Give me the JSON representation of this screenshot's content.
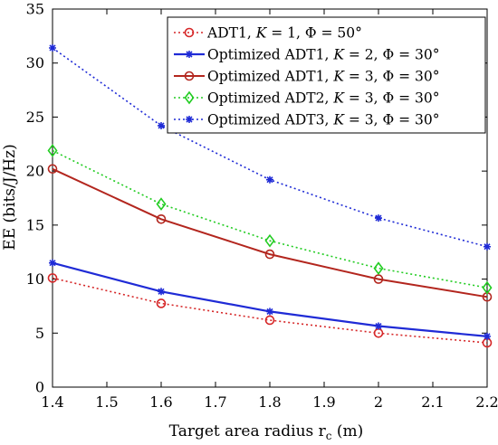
{
  "chart_data": {
    "type": "line",
    "xlabel": "Target area radius r",
    "xlabel_sub": "c",
    "xlabel_unit": " (m)",
    "ylabel": "EE (bits/J/Hz)",
    "xlim": [
      1.4,
      2.2
    ],
    "ylim": [
      0,
      35
    ],
    "x_ticks": [
      1.4,
      1.5,
      1.6,
      1.7,
      1.8,
      1.9,
      2.0,
      2.1,
      2.2
    ],
    "x_tick_labels": [
      "1.4",
      "1.5",
      "1.6",
      "1.7",
      "1.8",
      "1.9",
      "2",
      "2.1",
      "2.2"
    ],
    "y_ticks": [
      0,
      5,
      10,
      15,
      20,
      25,
      30,
      35
    ],
    "y_tick_labels": [
      "0",
      "5",
      "10",
      "15",
      "20",
      "25",
      "30",
      "35"
    ],
    "grid": false,
    "legend_position": "top-right",
    "x": [
      1.4,
      1.6,
      1.8,
      2.0,
      2.2
    ],
    "series": [
      {
        "name": "ADT1, K = 1, Φ = 50°",
        "legend": [
          {
            "t": "ADT1, "
          },
          {
            "t": "K",
            "i": true
          },
          {
            "t": " = 1, Φ = 50°"
          }
        ],
        "values": [
          10.1,
          7.75,
          6.2,
          5.0,
          4.1
        ],
        "color": "#d62728",
        "dash": "2,3",
        "marker": "circle",
        "width": 1.6
      },
      {
        "name": "Optimized ADT1, K = 2, Φ = 30°",
        "legend": [
          {
            "t": "Optimized ADT1, "
          },
          {
            "t": "K",
            "i": true
          },
          {
            "t": " = 2, Φ = 30°"
          }
        ],
        "values": [
          11.5,
          8.85,
          7.0,
          5.65,
          4.7
        ],
        "color": "#1f2bd6",
        "dash": "",
        "marker": "star",
        "width": 2.2
      },
      {
        "name": "Optimized ADT1, K = 3, Φ = 30°",
        "legend": [
          {
            "t": "Optimized ADT1, "
          },
          {
            "t": "K",
            "i": true
          },
          {
            "t": " = 3, Φ = 30°"
          }
        ],
        "values": [
          20.2,
          15.55,
          12.3,
          10.0,
          8.35
        ],
        "color": "#b3261e",
        "dash": "",
        "marker": "circle",
        "width": 2.0
      },
      {
        "name": "Optimized ADT2, K = 3, Φ = 30°",
        "legend": [
          {
            "t": "Optimized ADT2, "
          },
          {
            "t": "K",
            "i": true
          },
          {
            "t": " = 3, Φ = 30°"
          }
        ],
        "values": [
          21.9,
          16.95,
          13.55,
          11.0,
          9.2
        ],
        "color": "#22cc22",
        "dash": "2,3",
        "marker": "diamond",
        "width": 1.6
      },
      {
        "name": "Optimized ADT3, K = 3, Φ = 30°",
        "legend": [
          {
            "t": "Optimized ADT3, "
          },
          {
            "t": "K",
            "i": true
          },
          {
            "t": " = 3, Φ = 30°"
          }
        ],
        "values": [
          31.4,
          24.2,
          19.2,
          15.65,
          13.0
        ],
        "color": "#1f2bd6",
        "dash": "2,3",
        "marker": "star",
        "width": 1.6
      }
    ]
  }
}
